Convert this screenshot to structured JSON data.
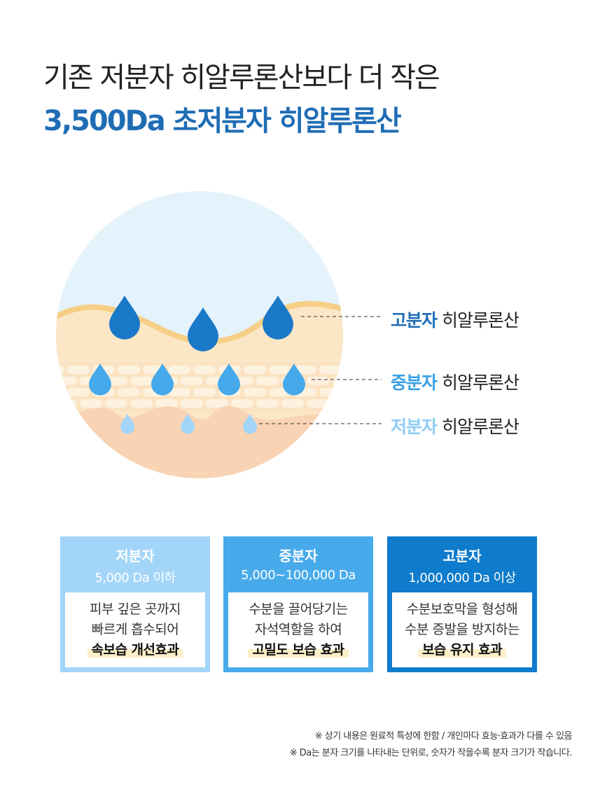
{
  "title": {
    "line1": "기존 저분자 히알루론산보다 더 작은",
    "line2": "3,500Da 초저분자 히알루론산"
  },
  "labels": [
    {
      "bold": "고분자",
      "rest": " 히알루론산",
      "color": "#1f6fb8"
    },
    {
      "bold": "중분자",
      "rest": " 히알루론산",
      "color": "#3aa0e6"
    },
    {
      "bold": "저분자",
      "rest": " 히알루론산",
      "color": "#8fcdf5"
    }
  ],
  "boxes": [
    {
      "heading": "저분자",
      "range": "5,000 Da 이하",
      "line1": "피부 깊은 곳까지",
      "line2": "빠르게 흡수되어",
      "highlight": "속보습 개선효과",
      "color": "#a3d5f9"
    },
    {
      "heading": "중분자",
      "range": "5,000~100,000 Da",
      "line1": "수분을 끌어당기는",
      "line2": "자석역할을 하여",
      "highlight": "고밀도 보습 효과",
      "color": "#47aaeb"
    },
    {
      "heading": "고분자",
      "range": "1,000,000 Da 이상",
      "line1": "수분보호막을 형성해",
      "line2": "수분 증발을 방지하는",
      "highlight": "보습 유지 효과",
      "color": "#0f7bcc"
    }
  ],
  "notes": [
    "※ 상기 내용은 원료적 특성에 한함 / 개인마다 효능·효과가 다를 수 있음",
    "※ Da는 분자 크기를 나타내는 단위로, 숫자가 작을수록 분자 크기가 작습니다."
  ]
}
